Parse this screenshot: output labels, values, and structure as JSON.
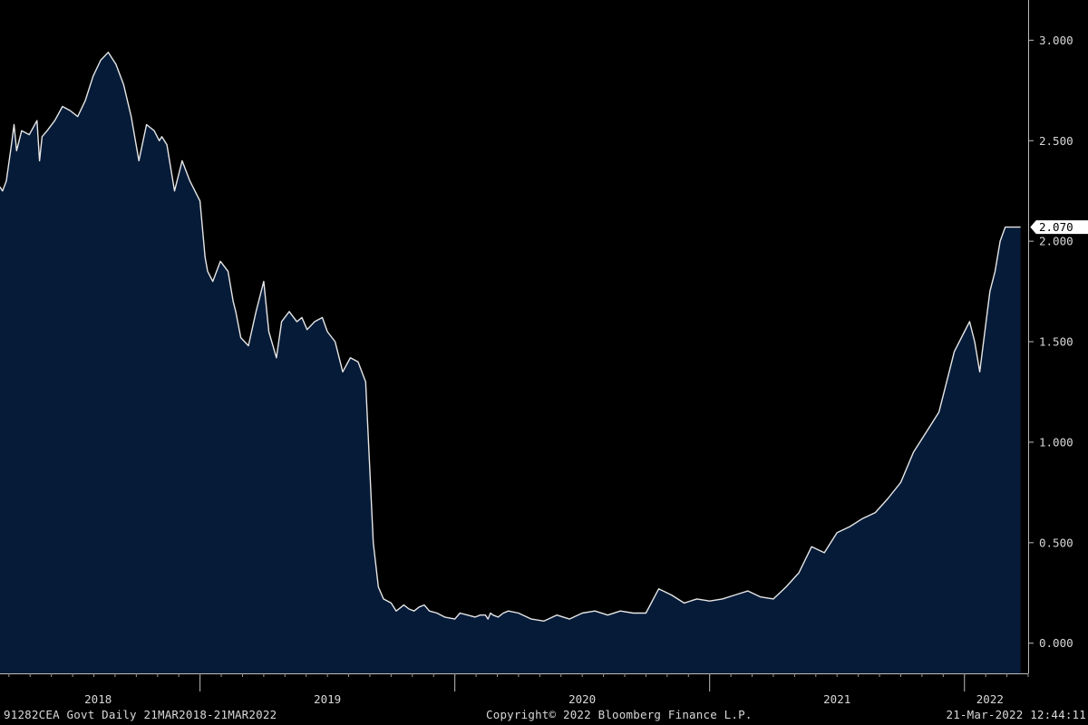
{
  "footer": {
    "security": "91282CEA Govt  Daily 21MAR2018-21MAR2022",
    "copyright": "Copyright© 2022 Bloomberg Finance L.P.",
    "timestamp": "21-Mar-2022 12:44:11"
  },
  "chart_data": {
    "type": "area",
    "title": "",
    "xlabel": "",
    "ylabel": "",
    "ylim": [
      -0.15,
      3.2
    ],
    "y_ticks": [
      0.0,
      0.5,
      1.0,
      1.5,
      2.0,
      2.5,
      3.0
    ],
    "y_tick_labels": [
      "0.000",
      "0.500",
      "1.000",
      "1.500",
      "2.000",
      "2.500",
      "3.000"
    ],
    "xlim": [
      2018.215,
      2022.25
    ],
    "x_tick_labels": [
      {
        "label": "2018",
        "x": 2018.6
      },
      {
        "label": "2019",
        "x": 2019.5
      },
      {
        "label": "2020",
        "x": 2020.5
      },
      {
        "label": "2021",
        "x": 2021.5
      },
      {
        "label": "2022",
        "x": 2022.1
      }
    ],
    "x_year_boundaries": [
      2019.0,
      2020.0,
      2021.0,
      2022.0
    ],
    "last_value_label": "2.070",
    "last_value": 2.07,
    "fill_color": "#061b38",
    "line_color": "#e6e6e6",
    "grid": false,
    "axis_side": "right",
    "series": [
      {
        "x": [
          2018.215,
          2018.225,
          2018.24,
          2018.26,
          2018.27,
          2018.28,
          2018.3,
          2018.33,
          2018.36,
          2018.37,
          2018.38,
          2018.4,
          2018.43,
          2018.46,
          2018.49,
          2018.52,
          2018.55,
          2018.58,
          2018.61,
          2018.64,
          2018.67,
          2018.7,
          2018.73,
          2018.76,
          2018.79,
          2018.82,
          2018.84,
          2018.85,
          2018.87,
          2018.9,
          2018.93,
          2018.96,
          2019.0,
          2019.02,
          2019.03,
          2019.05,
          2019.08,
          2019.11,
          2019.13,
          2019.14,
          2019.16,
          2019.19,
          2019.22,
          2019.25,
          2019.27,
          2019.3,
          2019.32,
          2019.35,
          2019.38,
          2019.4,
          2019.42,
          2019.45,
          2019.48,
          2019.5,
          2019.53,
          2019.56,
          2019.59,
          2019.62,
          2019.65,
          2019.68,
          2019.7,
          2019.72,
          2019.75,
          2019.77,
          2019.79,
          2019.8,
          2019.82,
          2019.84,
          2019.86,
          2019.88,
          2019.9,
          2019.93,
          2019.96,
          2020.0,
          2020.02,
          2020.05,
          2020.08,
          2020.1,
          2020.12,
          2020.13,
          2020.14,
          2020.15,
          2020.17,
          2020.19,
          2020.21,
          2020.25,
          2020.3,
          2020.35,
          2020.4,
          2020.45,
          2020.5,
          2020.55,
          2020.6,
          2020.65,
          2020.7,
          2020.75,
          2020.8,
          2020.85,
          2020.9,
          2020.95,
          2021.0,
          2021.05,
          2021.1,
          2021.15,
          2021.2,
          2021.25,
          2021.3,
          2021.35,
          2021.4,
          2021.45,
          2021.5,
          2021.55,
          2021.6,
          2021.65,
          2021.7,
          2021.75,
          2021.8,
          2021.85,
          2021.9,
          2021.93,
          2021.96,
          2022.0,
          2022.02,
          2022.04,
          2022.06,
          2022.08,
          2022.1,
          2022.12,
          2022.14,
          2022.16,
          2022.18,
          2022.2,
          2022.21,
          2022.22
        ],
        "y": [
          2.27,
          2.25,
          2.3,
          2.48,
          2.58,
          2.45,
          2.55,
          2.53,
          2.6,
          2.4,
          2.52,
          2.55,
          2.6,
          2.67,
          2.65,
          2.62,
          2.7,
          2.82,
          2.9,
          2.94,
          2.88,
          2.78,
          2.62,
          2.4,
          2.58,
          2.55,
          2.5,
          2.52,
          2.48,
          2.25,
          2.4,
          2.3,
          2.2,
          1.92,
          1.85,
          1.8,
          1.9,
          1.85,
          1.7,
          1.65,
          1.52,
          1.48,
          1.65,
          1.8,
          1.55,
          1.42,
          1.6,
          1.65,
          1.6,
          1.62,
          1.56,
          1.6,
          1.62,
          1.55,
          1.5,
          1.35,
          1.42,
          1.4,
          1.3,
          0.5,
          0.28,
          0.22,
          0.2,
          0.16,
          0.18,
          0.19,
          0.17,
          0.16,
          0.18,
          0.19,
          0.16,
          0.15,
          0.13,
          0.12,
          0.15,
          0.14,
          0.13,
          0.14,
          0.14,
          0.12,
          0.15,
          0.14,
          0.13,
          0.15,
          0.16,
          0.15,
          0.12,
          0.11,
          0.14,
          0.12,
          0.15,
          0.16,
          0.14,
          0.16,
          0.15,
          0.15,
          0.27,
          0.24,
          0.2,
          0.22,
          0.21,
          0.22,
          0.24,
          0.26,
          0.23,
          0.22,
          0.28,
          0.35,
          0.48,
          0.45,
          0.55,
          0.58,
          0.62,
          0.65,
          0.72,
          0.8,
          0.95,
          1.05,
          1.15,
          1.3,
          1.45,
          1.55,
          1.6,
          1.5,
          1.35,
          1.55,
          1.75,
          1.85,
          2.0,
          2.07,
          2.07,
          2.07,
          2.07,
          2.07
        ]
      }
    ]
  }
}
